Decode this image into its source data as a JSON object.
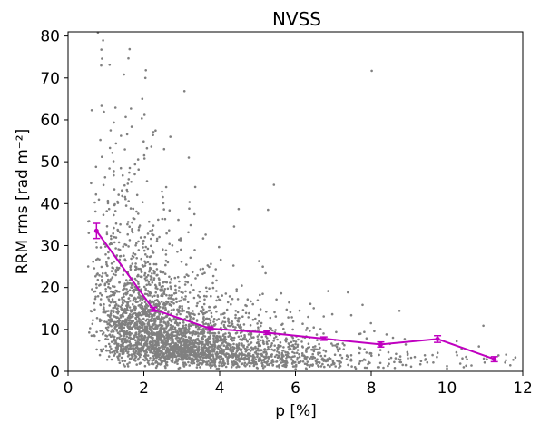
{
  "chart_data": {
    "type": "scatter",
    "title": "NVSS",
    "xlabel": "p [%]",
    "ylabel": "RRM rms [rad m⁻²]",
    "xlim": [
      0,
      12
    ],
    "ylim": [
      0,
      81
    ],
    "xticks": [
      "0",
      "2",
      "4",
      "6",
      "8",
      "10",
      "12"
    ],
    "yticks": [
      "0",
      "10",
      "20",
      "30",
      "40",
      "50",
      "60",
      "70",
      "80"
    ],
    "grid": false,
    "colors": {
      "scatter": "#808080",
      "median": "#c000c0"
    },
    "series": [
      {
        "kind": "scatter-cloud",
        "density_profile": {
          "x_peak": 2.8,
          "y_typical": 6,
          "x_range": [
            0.5,
            12
          ],
          "y_range": [
            0,
            81
          ],
          "n_points": 3400
        }
      },
      {
        "kind": "binned-median",
        "x": [
          0.75,
          2.25,
          3.75,
          5.25,
          6.75,
          8.25,
          9.75,
          11.25
        ],
        "y": [
          33.5,
          14.8,
          10.2,
          9.2,
          7.8,
          6.4,
          7.7,
          2.9
        ],
        "yerr": [
          1.8,
          0.5,
          0.4,
          0.4,
          0.4,
          0.6,
          0.8,
          0.6
        ]
      }
    ]
  }
}
